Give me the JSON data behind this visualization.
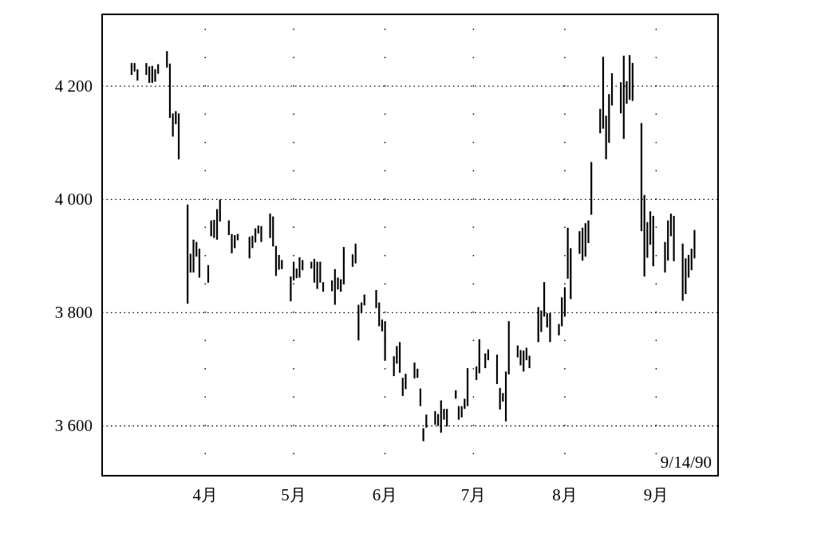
{
  "chart_data": {
    "type": "bar",
    "color": "#000000",
    "x": [
      "--03-07",
      "--03-08",
      "--03-09",
      "--03-12",
      "--03-13",
      "--03-14",
      "--03-15",
      "--03-16",
      "--03-19",
      "--03-20",
      "--03-21",
      "--03-22",
      "--03-23",
      "--03-26",
      "--03-27",
      "--03-28",
      "--03-29",
      "--03-30",
      "--04-02",
      "--04-03",
      "--04-04",
      "--04-05",
      "--04-06",
      "--04-09",
      "--04-10",
      "--04-11",
      "--04-12",
      "--04-16",
      "--04-17",
      "--04-18",
      "--04-19",
      "--04-20",
      "--04-23",
      "--04-24",
      "--04-25",
      "--04-26",
      "--04-27",
      "--04-30",
      "--05-01",
      "--05-02",
      "--05-03",
      "--05-04",
      "--05-07",
      "--05-08",
      "--05-09",
      "--05-10",
      "--05-11",
      "--05-14",
      "--05-15",
      "--05-16",
      "--05-17",
      "--05-18",
      "--05-21",
      "--05-22",
      "--05-23",
      "--05-24",
      "--05-25",
      "--05-29",
      "--05-30",
      "--05-31",
      "--06-01",
      "--06-04",
      "--06-05",
      "--06-06",
      "--06-07",
      "--06-08",
      "--06-11",
      "--06-12",
      "--06-13",
      "--06-14",
      "--06-15",
      "--06-18",
      "--06-19",
      "--06-20",
      "--06-21",
      "--06-22",
      "--06-25",
      "--06-26",
      "--06-27",
      "--06-28",
      "--06-29",
      "--07-02",
      "--07-03",
      "--07-05",
      "--07-06",
      "--07-09",
      "--07-10",
      "--07-11",
      "--07-12",
      "--07-13",
      "--07-16",
      "--07-17",
      "--07-18",
      "--07-19",
      "--07-20",
      "--07-23",
      "--07-24",
      "--07-25",
      "--07-26",
      "--07-27",
      "--07-30",
      "--07-31",
      "--08-01",
      "--08-02",
      "--08-03",
      "--08-06",
      "--08-07",
      "--08-08",
      "--08-09",
      "--08-10",
      "--08-13",
      "--08-14",
      "--08-15",
      "--08-16",
      "--08-17",
      "--08-20",
      "--08-21",
      "--08-22",
      "--08-23",
      "--08-24",
      "--08-27",
      "--08-28",
      "--08-29",
      "--08-30",
      "--08-31",
      "--09-04",
      "--09-05",
      "--09-06",
      "--09-07",
      "--09-10",
      "--09-11",
      "--09-12",
      "--09-13",
      "--09-14"
    ],
    "base": [
      4220,
      4226,
      4210,
      4220,
      4206,
      4206,
      4208,
      4222,
      4233,
      4144,
      4111,
      4133,
      4071,
      3816,
      3871,
      3871,
      3899,
      3862,
      3853,
      3935,
      3932,
      3929,
      3961,
      3937,
      3905,
      3914,
      3928,
      3896,
      3914,
      3924,
      3940,
      3925,
      3932,
      3917,
      3865,
      3876,
      3877,
      3820,
      3857,
      3861,
      3862,
      3875,
      3878,
      3853,
      3842,
      3853,
      3837,
      3838,
      3814,
      3841,
      3837,
      3850,
      3881,
      3887,
      3751,
      3799,
      3813,
      3808,
      3776,
      3767,
      3715,
      3688,
      3710,
      3694,
      3653,
      3665,
      3684,
      3685,
      3635,
      3573,
      3597,
      3602,
      3600,
      3588,
      3611,
      3599,
      3648,
      3611,
      3615,
      3630,
      3635,
      3681,
      3693,
      3702,
      3716,
      3674,
      3629,
      3643,
      3608,
      3691,
      3721,
      3707,
      3696,
      3716,
      3702,
      3748,
      3766,
      3793,
      3774,
      3748,
      3760,
      3776,
      3793,
      3860,
      3824,
      3904,
      3892,
      3899,
      3923,
      3973,
      4117,
      4125,
      4071,
      4100,
      4166,
      4152,
      4107,
      4169,
      4176,
      4174,
      3944,
      3864,
      3897,
      3920,
      3882,
      3871,
      3892,
      3935,
      3891,
      3821,
      3833,
      3862,
      3875,
      3896
    ],
    "values": [
      21,
      15,
      20,
      21,
      29,
      30,
      22,
      17,
      29,
      96,
      41,
      23,
      81,
      175,
      33,
      58,
      26,
      51,
      31,
      28,
      32,
      54,
      39,
      26,
      34,
      23,
      11,
      38,
      22,
      25,
      14,
      28,
      43,
      53,
      53,
      26,
      16,
      44,
      33,
      17,
      36,
      18,
      12,
      42,
      48,
      37,
      17,
      19,
      63,
      21,
      22,
      66,
      22,
      35,
      63,
      19,
      19,
      32,
      42,
      21,
      70,
      35,
      31,
      54,
      32,
      27,
      28,
      16,
      31,
      23,
      23,
      24,
      21,
      57,
      19,
      31,
      15,
      24,
      20,
      18,
      67,
      24,
      60,
      26,
      19,
      52,
      38,
      15,
      88,
      94,
      21,
      27,
      37,
      22,
      22,
      62,
      38,
      61,
      25,
      51,
      20,
      51,
      52,
      90,
      90,
      40,
      58,
      59,
      40,
      93,
      43,
      127,
      77,
      86,
      57,
      55,
      147,
      40,
      79,
      67,
      191,
      144,
      63,
      59,
      89,
      54,
      71,
      40,
      80,
      101,
      63,
      40,
      38,
      50
    ],
    "xlim": [
      "--02-25",
      "--09-22"
    ],
    "xticks": [
      {
        "value": "--04-01",
        "label": "4月"
      },
      {
        "value": "--05-01",
        "label": "5月"
      },
      {
        "value": "--06-01",
        "label": "6月"
      },
      {
        "value": "--07-01",
        "label": "7月"
      },
      {
        "value": "--08-01",
        "label": "8月"
      },
      {
        "value": "--09-01",
        "label": "9月"
      }
    ],
    "ylim": [
      3512,
      4327
    ],
    "yticks": [
      {
        "value": 3600,
        "label": "3 600"
      },
      {
        "value": 3800,
        "label": "3 800"
      },
      {
        "value": 4000,
        "label": "4 000"
      },
      {
        "value": 4200,
        "label": "4 200"
      }
    ],
    "grid": true,
    "annotations": [
      "9/14/90"
    ]
  }
}
